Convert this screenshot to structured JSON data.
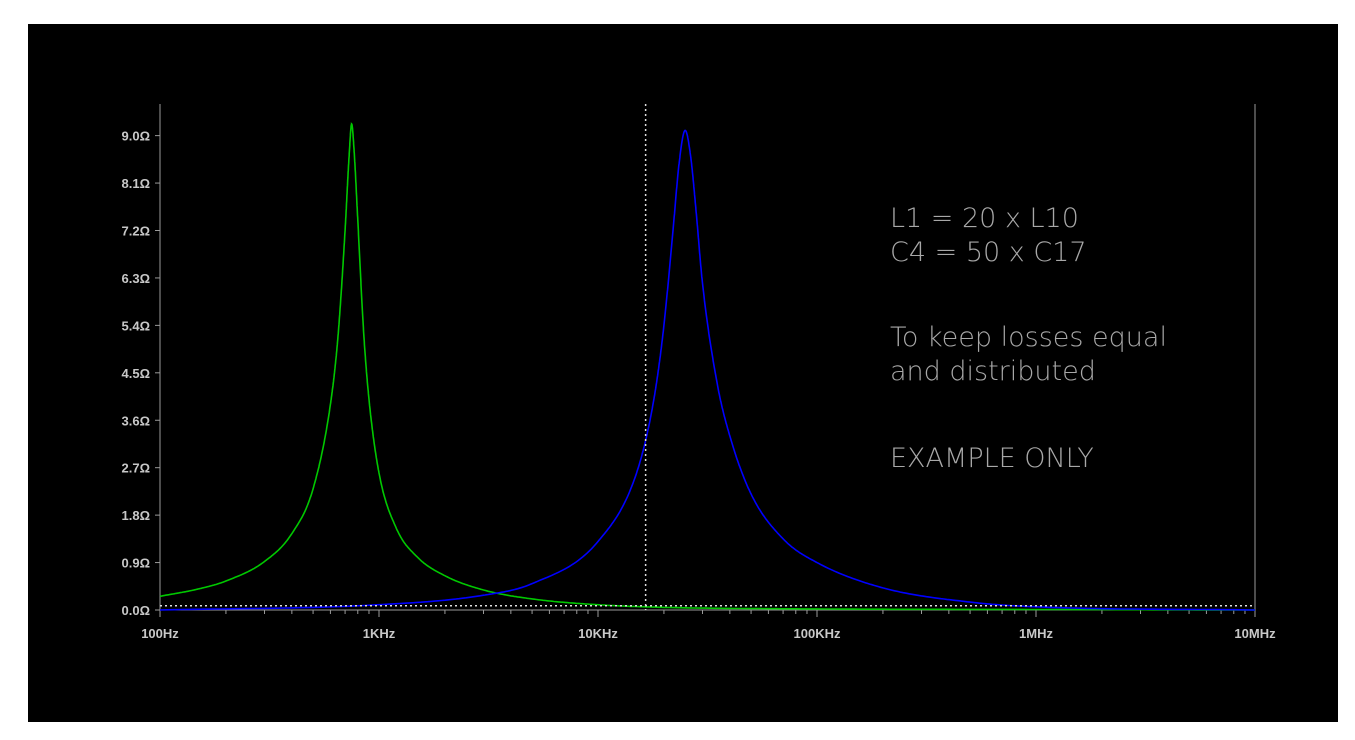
{
  "chart_data": {
    "type": "line",
    "x_scale": "log",
    "xlim": [
      100,
      10000000
    ],
    "ylim": [
      0,
      9.6
    ],
    "x_ticks": [
      {
        "value": 100,
        "label": "100Hz"
      },
      {
        "value": 1000,
        "label": "1KHz"
      },
      {
        "value": 10000,
        "label": "10KHz"
      },
      {
        "value": 100000,
        "label": "100KHz"
      },
      {
        "value": 1000000,
        "label": "1MHz"
      },
      {
        "value": 10000000,
        "label": "10MHz"
      }
    ],
    "y_ticks": [
      {
        "value": 0.0,
        "label": "0.0Ω"
      },
      {
        "value": 0.9,
        "label": "0.9Ω"
      },
      {
        "value": 1.8,
        "label": "1.8Ω"
      },
      {
        "value": 2.7,
        "label": "2.7Ω"
      },
      {
        "value": 3.6,
        "label": "3.6Ω"
      },
      {
        "value": 4.5,
        "label": "4.5Ω"
      },
      {
        "value": 5.4,
        "label": "5.4Ω"
      },
      {
        "value": 6.3,
        "label": "6.3Ω"
      },
      {
        "value": 7.2,
        "label": "7.2Ω"
      },
      {
        "value": 8.1,
        "label": "8.1Ω"
      },
      {
        "value": 9.0,
        "label": "9.0Ω"
      }
    ],
    "series": [
      {
        "color": "#00c800",
        "x": [
          100,
          150,
          200,
          300,
          400,
          500,
          600,
          650,
          700,
          730,
          750,
          770,
          800,
          850,
          900,
          1000,
          1200,
          1500,
          2000,
          3000,
          5000,
          10000,
          20000,
          100000,
          1000000,
          10000000
        ],
        "values": [
          0.26,
          0.4,
          0.55,
          0.92,
          1.45,
          2.3,
          3.9,
          5.2,
          7.2,
          8.6,
          9.22,
          8.7,
          7.4,
          5.3,
          4.0,
          2.6,
          1.55,
          1.0,
          0.65,
          0.38,
          0.21,
          0.1,
          0.05,
          0.02,
          0.01,
          0.0
        ]
      },
      {
        "color": "#0000ff",
        "x": [
          100,
          1000,
          3000,
          5000,
          10000,
          15000,
          18000,
          20000,
          22000,
          23500,
          25000,
          26500,
          28000,
          30000,
          35000,
          40000,
          50000,
          70000,
          100000,
          200000,
          500000,
          1000000,
          10000000
        ],
        "values": [
          0.0,
          0.1,
          0.28,
          0.5,
          1.3,
          2.6,
          4.0,
          5.4,
          7.2,
          8.5,
          9.1,
          8.6,
          7.6,
          6.2,
          4.3,
          3.3,
          2.2,
          1.35,
          0.9,
          0.42,
          0.15,
          0.06,
          0.0
        ]
      }
    ],
    "cursors": {
      "x": 16500,
      "y": 0.08,
      "color": "#e0e0e0"
    }
  },
  "annotation": {
    "line1": "L1 = 20 x L10",
    "line2": "C4 = 50 x C17",
    "line3": "To keep losses equal",
    "line4": "and distributed",
    "line5": "EXAMPLE ONLY"
  }
}
